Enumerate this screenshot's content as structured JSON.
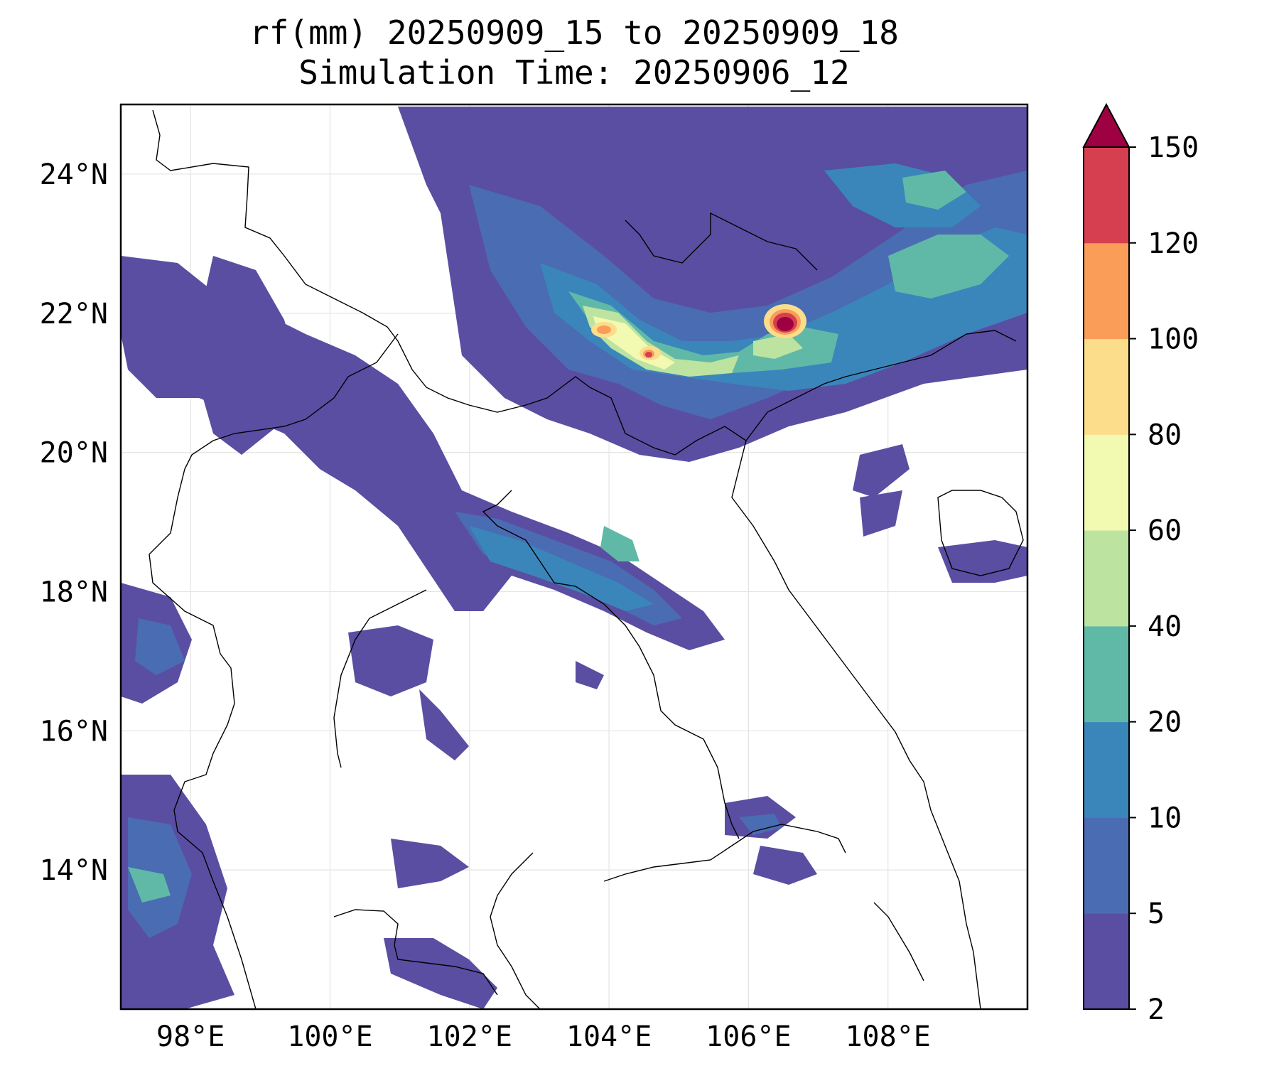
{
  "title": {
    "line1": "rf(mm) 20250909_15 to 20250909_18",
    "line2": "Simulation Time: 20250906_12"
  },
  "map": {
    "lon_range": [
      97.0,
      110.0
    ],
    "lat_range": [
      12.0,
      25.0
    ],
    "lon_ticks": [
      "98°E",
      "100°E",
      "102°E",
      "104°E",
      "106°E",
      "108°E"
    ],
    "lon_tick_values": [
      98,
      100,
      102,
      104,
      106,
      108
    ],
    "lat_ticks": [
      "24°N",
      "22°N",
      "20°N",
      "18°N",
      "16°N",
      "14°N"
    ],
    "lat_tick_values": [
      24,
      22,
      20,
      18,
      16,
      14
    ],
    "gridlines": true
  },
  "colorbar": {
    "levels": [
      "2",
      "5",
      "10",
      "20",
      "40",
      "60",
      "80",
      "100",
      "120",
      "150"
    ],
    "colors": [
      "#5a4ea2",
      "#4a6cb3",
      "#3a86bb",
      "#60b9a7",
      "#bde3a0",
      "#f2f9b0",
      "#fcdd8b",
      "#f99d59",
      "#d63f4f",
      "#9e0142"
    ],
    "extend": "max"
  }
}
